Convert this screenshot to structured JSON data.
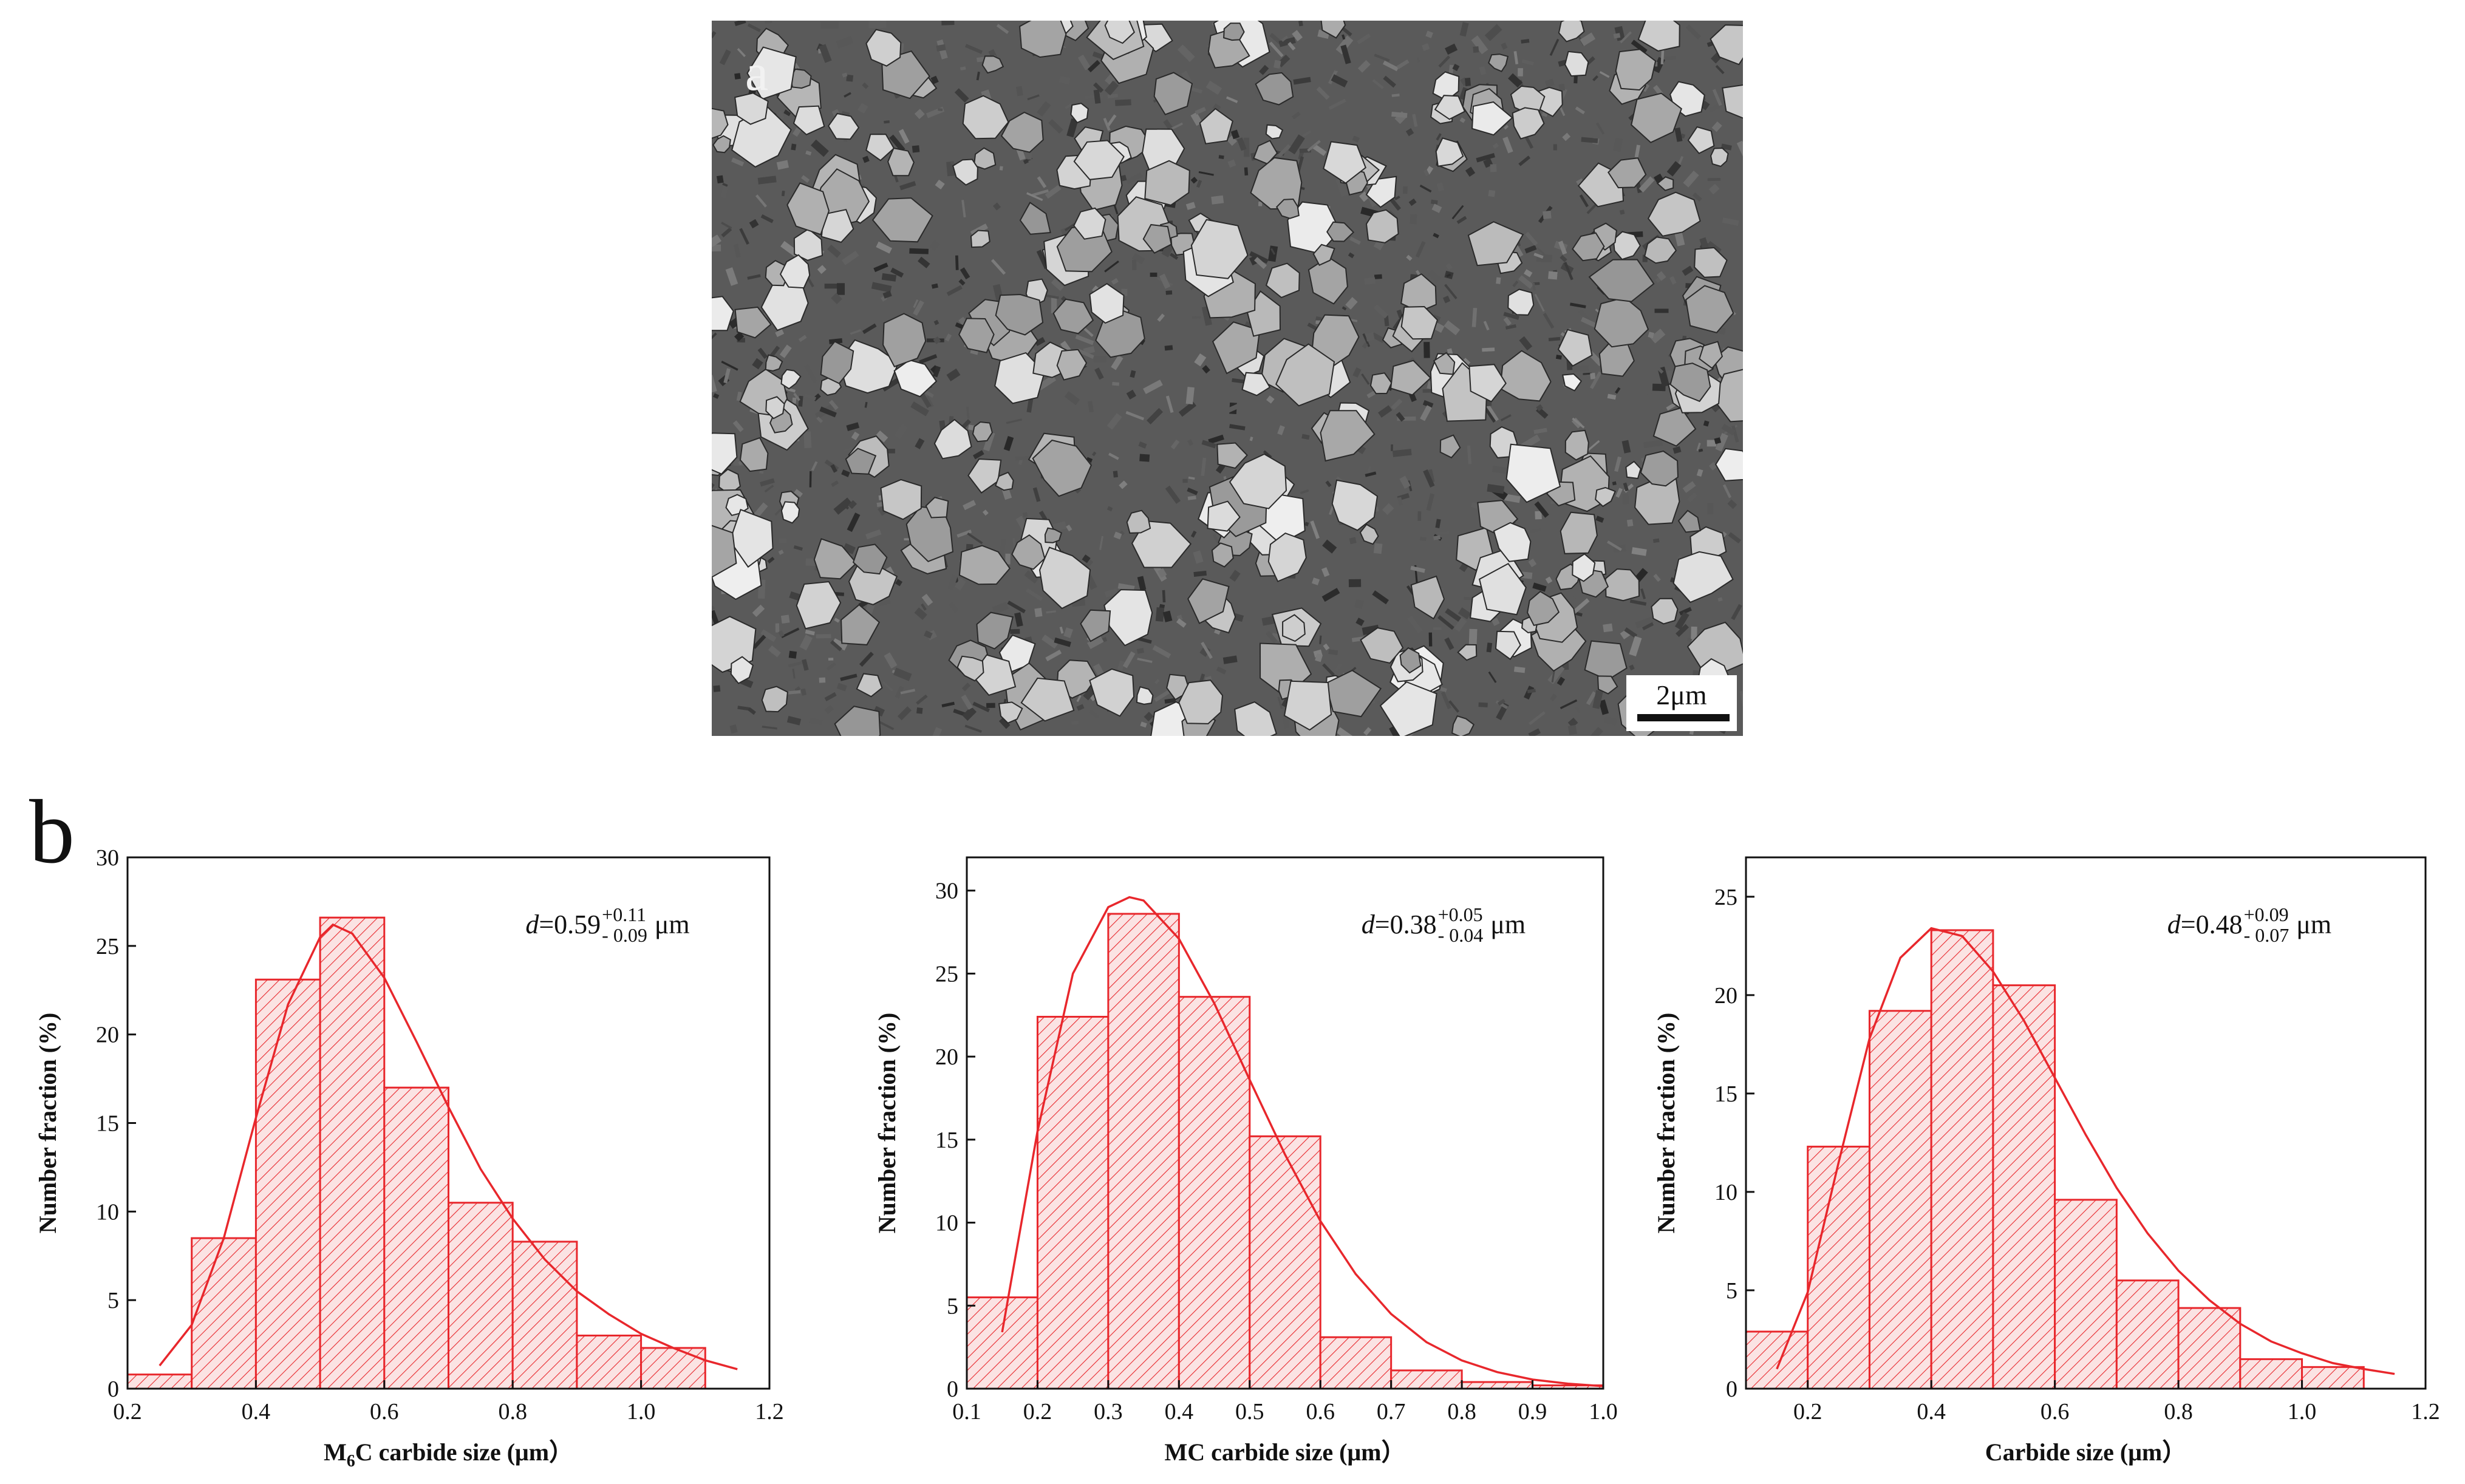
{
  "panel_a": {
    "letter": "a",
    "scalebar_label": "2μm"
  },
  "panel_b": {
    "letter": "b"
  },
  "colors": {
    "bar": "#e8272c",
    "fit": "#e8272c",
    "axis": "#111111"
  },
  "chart_data": [
    {
      "type": "bar",
      "subtype": "histogram with distribution fit",
      "xlabel": "M6C carbide size (μm)",
      "xlabel_parts": {
        "pre": "M",
        "sub": "6",
        "post": "C carbide size (μm）"
      },
      "ylabel": "Number fraction (%)",
      "xlim": [
        0.2,
        1.2
      ],
      "ylim": [
        0,
        30
      ],
      "xticks": [
        "0.2",
        "0.4",
        "0.6",
        "0.8",
        "1.0",
        "1.2"
      ],
      "yticks": [
        "0",
        "5",
        "10",
        "15",
        "20",
        "25",
        "30"
      ],
      "bin_edges": [
        0.2,
        0.3,
        0.4,
        0.5,
        0.6,
        0.7,
        0.8,
        0.9,
        1.0,
        1.1
      ],
      "values": [
        0.8,
        8.5,
        23.1,
        26.6,
        17.0,
        10.5,
        8.3,
        3.0,
        2.3
      ],
      "fit_curve": {
        "x": [
          0.25,
          0.3,
          0.35,
          0.4,
          0.45,
          0.5,
          0.52,
          0.55,
          0.6,
          0.65,
          0.7,
          0.75,
          0.8,
          0.85,
          0.9,
          0.95,
          1.0,
          1.05,
          1.1,
          1.15
        ],
        "y": [
          1.3,
          3.6,
          8.5,
          15.3,
          21.7,
          25.5,
          26.2,
          25.7,
          23.2,
          19.6,
          15.9,
          12.4,
          9.6,
          7.3,
          5.5,
          4.2,
          3.1,
          2.3,
          1.6,
          1.1
        ]
      },
      "annotation": {
        "var": "d",
        "value": "=0.59",
        "plus": "+0.11",
        "minus": "- 0.09",
        "unit": "μm"
      }
    },
    {
      "type": "bar",
      "subtype": "histogram with distribution fit",
      "xlabel": "MC carbide size (μm）",
      "ylabel": "Number fraction (%)",
      "xlim": [
        0.1,
        1.0
      ],
      "ylim": [
        0,
        32
      ],
      "xticks": [
        "0.1",
        "0.2",
        "0.3",
        "0.4",
        "0.5",
        "0.6",
        "0.7",
        "0.8",
        "0.9",
        "1.0"
      ],
      "yticks": [
        "0",
        "5",
        "10",
        "15",
        "20",
        "25",
        "30"
      ],
      "bin_edges": [
        0.1,
        0.2,
        0.3,
        0.4,
        0.5,
        0.6,
        0.7,
        0.8,
        0.9,
        1.0
      ],
      "values": [
        5.5,
        22.4,
        28.6,
        23.6,
        15.2,
        3.1,
        1.1,
        0.4,
        0.2
      ],
      "fit_curve": {
        "x": [
          0.15,
          0.2,
          0.25,
          0.3,
          0.33,
          0.35,
          0.4,
          0.45,
          0.5,
          0.55,
          0.6,
          0.65,
          0.7,
          0.75,
          0.8,
          0.85,
          0.9,
          0.95,
          1.0
        ],
        "y": [
          3.4,
          15.5,
          25.0,
          29.0,
          29.6,
          29.4,
          27.1,
          23.2,
          18.6,
          14.1,
          10.1,
          6.9,
          4.5,
          2.8,
          1.7,
          1.0,
          0.55,
          0.3,
          0.15
        ]
      },
      "annotation": {
        "var": "d",
        "value": "=0.38",
        "plus": "+0.05",
        "minus": "- 0.04",
        "unit": "μm"
      }
    },
    {
      "type": "bar",
      "subtype": "histogram with distribution fit",
      "xlabel": "Carbide size (μm）",
      "ylabel": "Number fraction (%)",
      "xlim": [
        0.1,
        1.2
      ],
      "ylim": [
        0,
        27
      ],
      "xticks": [
        "0.2",
        "0.4",
        "0.6",
        "0.8",
        "1.0",
        "1.2"
      ],
      "yticks": [
        "0",
        "5",
        "10",
        "15",
        "20",
        "25"
      ],
      "bin_edges": [
        0.1,
        0.2,
        0.3,
        0.4,
        0.5,
        0.6,
        0.7,
        0.8,
        0.9,
        1.0,
        1.1
      ],
      "values": [
        2.9,
        12.3,
        19.2,
        23.3,
        20.5,
        9.6,
        5.5,
        4.1,
        1.5,
        1.1
      ],
      "fit_curve": {
        "x": [
          0.15,
          0.2,
          0.25,
          0.3,
          0.35,
          0.4,
          0.45,
          0.5,
          0.55,
          0.6,
          0.65,
          0.7,
          0.75,
          0.8,
          0.85,
          0.9,
          0.95,
          1.0,
          1.05,
          1.1,
          1.15
        ],
        "y": [
          1.0,
          4.9,
          11.5,
          17.8,
          21.9,
          23.4,
          23.0,
          21.2,
          18.7,
          15.8,
          12.9,
          10.2,
          7.9,
          6.0,
          4.5,
          3.3,
          2.4,
          1.8,
          1.3,
          1.0,
          0.75
        ]
      },
      "annotation": {
        "var": "d",
        "value": "=0.48",
        "plus": "+0.09",
        "minus": "- 0.07",
        "unit": "μm"
      }
    }
  ]
}
